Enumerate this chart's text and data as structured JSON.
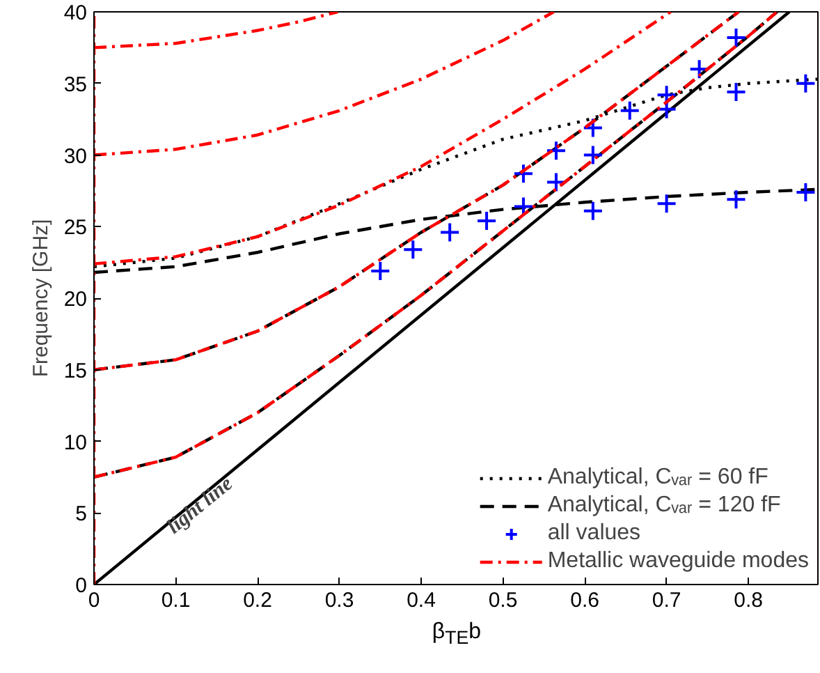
{
  "chart_data": {
    "type": "line",
    "xlabel": "β$_{TE}$b",
    "ylabel": "Frequency [GHz]",
    "xlim": [
      0,
      0.885
    ],
    "xticks": [
      0,
      0.1,
      0.2,
      0.3,
      0.4,
      0.5,
      0.6,
      0.7,
      0.8
    ],
    "ylim": [
      0,
      40
    ],
    "yticks": [
      0,
      5,
      10,
      15,
      20,
      25,
      30,
      35,
      40
    ],
    "grid": false,
    "legend": "bottom right",
    "annotations": [
      {
        "text": "light line",
        "x": 0.13,
        "y": 5.5
      }
    ],
    "series": [
      {
        "color": "#000000",
        "line_style": "solid",
        "x": [
          0,
          0.85
        ],
        "values": [
          0,
          40
        ]
      },
      {
        "name": "Analytical, Cᵥₐᵣ = 60 fF",
        "color": "#000000",
        "line_style": "dotted",
        "x": [
          0,
          0.1,
          0.2,
          0.3,
          0.4,
          0.5,
          0.6,
          0.7,
          0.75,
          0.8,
          0.885
        ],
        "values": [
          22.2,
          22.8,
          24.3,
          26.6,
          29.0,
          31.1,
          32.4,
          34.2,
          34.7,
          35.0,
          35.3
        ]
      },
      {
        "name": "Analytical, Cᵥₐᵣ = 120 fF",
        "color": "#000000",
        "line_style": "dashed",
        "x": [
          0,
          0.1,
          0.2,
          0.3,
          0.4,
          0.5,
          0.6,
          0.7,
          0.8,
          0.835,
          null,
          0,
          0.1,
          0.2,
          0.3,
          0.4,
          0.5,
          0.6,
          0.7,
          0.788,
          null,
          0,
          0.1,
          0.2,
          0.3,
          0.4,
          0.5,
          0.6,
          0.7,
          0.8,
          0.885
        ],
        "values": [
          7.5,
          8.9,
          12.0,
          16.0,
          20.2,
          24.7,
          29.2,
          33.7,
          38.3,
          40,
          null,
          15,
          15.7,
          17.7,
          20.8,
          24.6,
          27.9,
          31.9,
          36.2,
          40,
          null,
          21.8,
          22.2,
          23.2,
          24.5,
          25.5,
          26.2,
          26.7,
          27.1,
          27.4,
          27.6
        ]
      },
      {
        "type": "scatter",
        "name": "all values",
        "color": "#0000ff",
        "marker": "cross",
        "x": [
          0.35,
          0.39,
          0.435,
          0.48,
          0.525,
          0.525,
          0.565,
          0.565,
          0.61,
          0.61,
          0.61,
          0.655,
          0.7,
          0.7,
          0.7,
          0.74,
          0.785,
          0.785,
          0.785,
          0.87,
          0.87
        ],
        "values": [
          21.9,
          23.4,
          24.6,
          25.4,
          26.4,
          28.7,
          28.1,
          30.3,
          31.9,
          30.0,
          26.1,
          33.1,
          34.2,
          33.2,
          26.6,
          36.0,
          38.2,
          34.4,
          26.9,
          35.0,
          27.4
        ]
      },
      {
        "name": "Metallic waveguide modes",
        "color": "#ff0000",
        "line_style": "dashdot",
        "x": [
          0,
          0,
          null,
          0,
          0.1,
          0.2,
          0.3,
          0.4,
          0.5,
          0.6,
          0.7,
          0.8,
          0.835,
          null,
          0,
          0.1,
          0.2,
          0.3,
          0.4,
          0.5,
          0.6,
          0.7,
          0.788,
          null,
          0,
          0.1,
          0.2,
          0.3,
          0.4,
          0.5,
          0.6,
          0.705,
          null,
          0,
          0.1,
          0.2,
          0.3,
          0.4,
          0.5,
          0.562,
          null,
          0,
          0.1,
          0.2,
          0.25,
          0.298
        ],
        "values": [
          0,
          40,
          null,
          7.5,
          8.9,
          12.0,
          16.0,
          20.2,
          24.7,
          29.2,
          33.7,
          38.3,
          40,
          null,
          15,
          15.7,
          17.7,
          20.8,
          24.6,
          27.9,
          31.9,
          36.2,
          40,
          null,
          22.4,
          22.9,
          24.3,
          26.5,
          29.2,
          32.5,
          36.0,
          40,
          null,
          30,
          30.4,
          31.4,
          33.1,
          35.3,
          38.0,
          40,
          null,
          37.5,
          37.8,
          38.7,
          39.3,
          40
        ]
      }
    ]
  }
}
